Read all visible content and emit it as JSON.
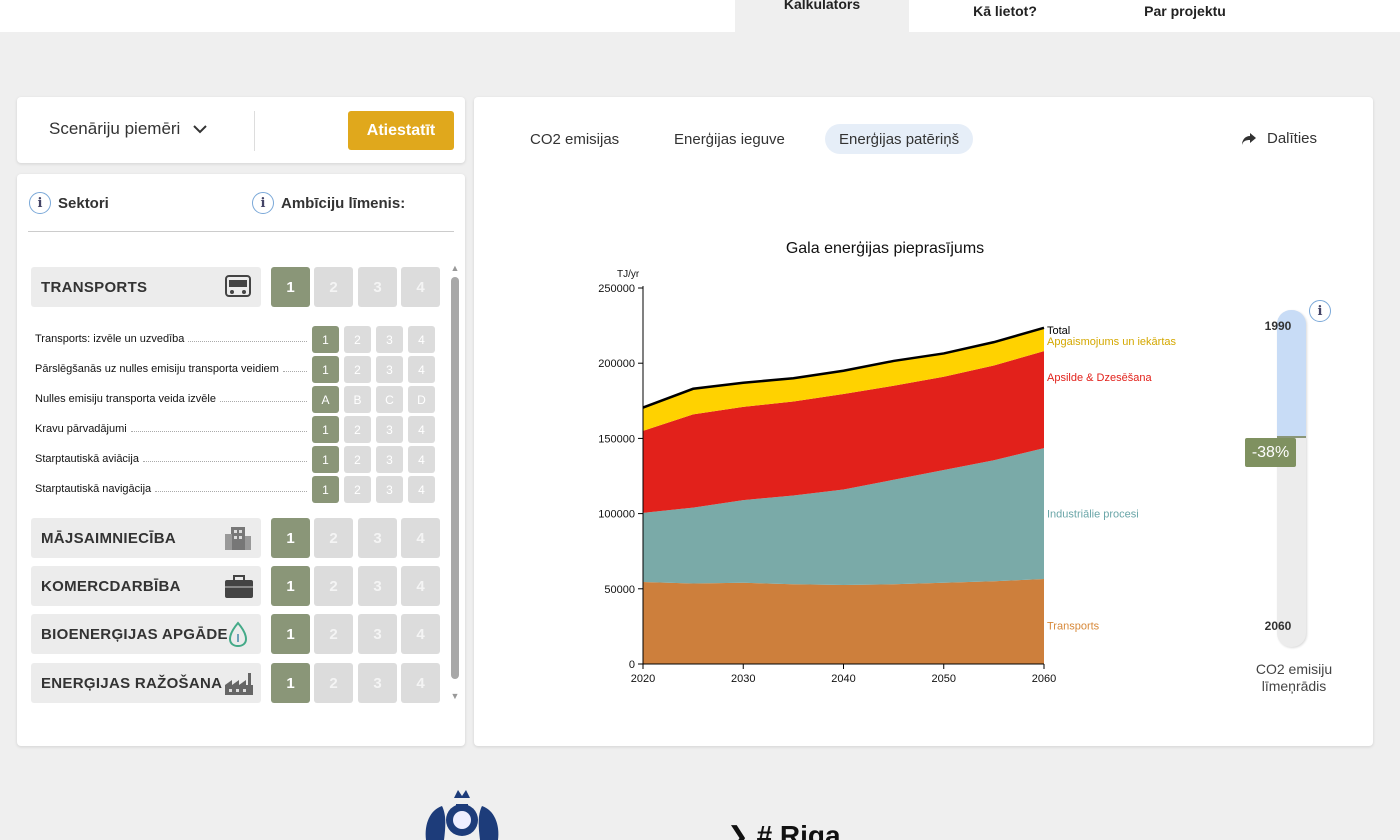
{
  "nav": {
    "calculator": "Kalkulators",
    "how_to_use": "Kā lietot?",
    "about": "Par projektu"
  },
  "scenario": {
    "dropdown_label": "Scenāriju piemēri",
    "reset_label": "Atiestatīt"
  },
  "sectors_panel": {
    "sectors_header": "Sektori",
    "ambition_header": "Ambīciju līmenis:",
    "levels": [
      "1",
      "2",
      "3",
      "4"
    ],
    "letter_levels": [
      "A",
      "B",
      "C",
      "D"
    ],
    "sectors": [
      {
        "name": "TRANSPORTS",
        "icon": "bus-icon",
        "selected": 1
      },
      {
        "name": "MĀJSAIMNIECĪBA",
        "icon": "building-icon",
        "selected": 1
      },
      {
        "name": "KOMERCDARBĪBA",
        "icon": "briefcase-icon",
        "selected": 1
      },
      {
        "name": "BIOENERĢIJAS APGĀDE",
        "icon": "leaf-drop-icon",
        "selected": 1
      },
      {
        "name": "ENERĢIJAS RAŽOŠANA",
        "icon": "factory-icon",
        "selected": 1
      }
    ],
    "transport_subsectors": [
      {
        "name": "Transports: izvēle un uzvedība",
        "selected": 1
      },
      {
        "name": "Pārslēgšanās uz nulles emisiju transporta veidiem",
        "selected": 1
      },
      {
        "name": "Nulles emisiju transporta veida izvēle",
        "selected": "A"
      },
      {
        "name": "Kravu pārvadājumi",
        "selected": 1
      },
      {
        "name": "Starptautiskā aviācija",
        "selected": 1
      },
      {
        "name": "Starptautiskā navigācija",
        "selected": 1
      }
    ]
  },
  "tabs": {
    "co2": "CO2 emisijas",
    "production": "Enerģijas ieguve",
    "consumption": "Enerģijas patēriņš",
    "active": "consumption"
  },
  "share_label": "Dalīties",
  "chart_data": {
    "type": "area",
    "title": "Gala enerģijas pieprasījums",
    "ylabel": "TJ/yr",
    "xlabel": "",
    "x": [
      2020,
      2025,
      2030,
      2035,
      2040,
      2045,
      2050,
      2055,
      2060
    ],
    "xticks": [
      2020,
      2030,
      2040,
      2050,
      2060
    ],
    "yticks": [
      0,
      50000,
      100000,
      150000,
      200000,
      250000
    ],
    "ylim": [
      0,
      250000
    ],
    "stacked": true,
    "series": [
      {
        "name": "Transports",
        "color": "#cd7f3c",
        "values": [
          54500,
          53500,
          54000,
          53000,
          52500,
          53000,
          54000,
          55000,
          56500
        ]
      },
      {
        "name": "Industriālie procesi",
        "color": "#7aaaa8",
        "values": [
          46000,
          50500,
          55000,
          59000,
          63500,
          69500,
          75000,
          80500,
          87000
        ]
      },
      {
        "name": "Apsilde & Dzesēšana",
        "color": "#e2211b",
        "values": [
          54500,
          62000,
          62000,
          62500,
          63500,
          62500,
          62000,
          63000,
          64500
        ]
      },
      {
        "name": "Apgaismojums un iekārtas",
        "color": "#ffd200",
        "values": [
          15500,
          17000,
          16000,
          15500,
          15500,
          16500,
          15500,
          15500,
          15500
        ]
      }
    ],
    "total": {
      "name": "Total",
      "color": "#000000",
      "values": [
        170500,
        183000,
        187000,
        190000,
        195000,
        201500,
        206500,
        214000,
        223500
      ]
    },
    "label_colors": {
      "Total": "#000000",
      "Apgaismojums un iekārtas": "#d4a800",
      "Apsilde & Dzesēšana": "#e2211b",
      "Industriālie procesi": "#6aa6a8",
      "Transports": "#d7893a"
    }
  },
  "meter": {
    "top_year": "1990",
    "bottom_year": "2060",
    "value": "-38%",
    "label_line1": "CO2 emisiju",
    "label_line2": "līmeņrādis"
  },
  "footer": {
    "riga_text": "# Riga"
  }
}
